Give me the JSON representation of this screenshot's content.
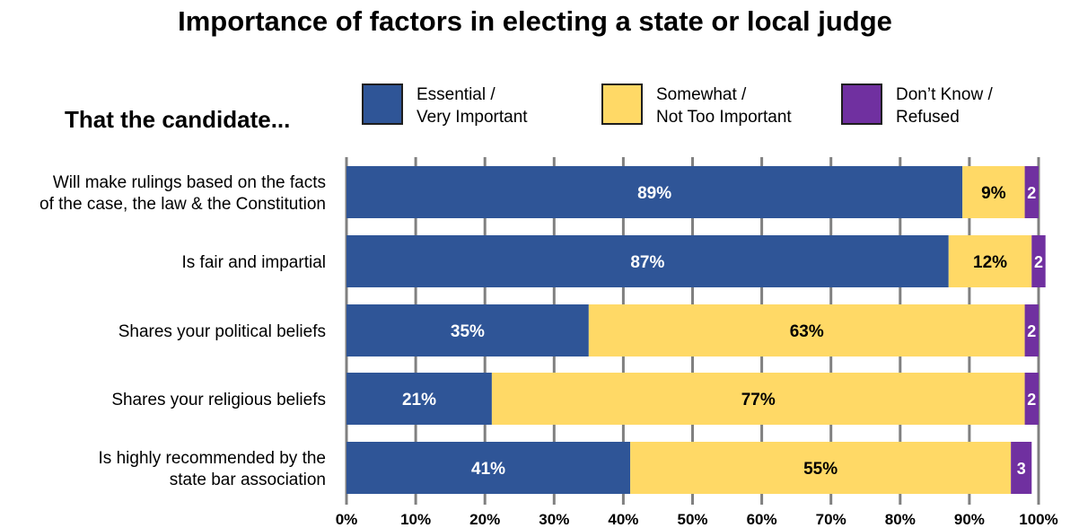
{
  "title": "Importance of factors in electing a state or local judge",
  "subtitle": "That the candidate...",
  "colors": {
    "essential": "#2f5597",
    "somewhat": "#ffd966",
    "dontknow": "#7030a0",
    "gridline": "#808080"
  },
  "legend": [
    {
      "line1": "Essential /",
      "line2": "Very Important",
      "color": "#2f5597"
    },
    {
      "line1": "Somewhat /",
      "line2": "Not Too Important",
      "color": "#ffd966"
    },
    {
      "line1": "Don’t Know /",
      "line2": "Refused",
      "color": "#7030a0"
    }
  ],
  "chart_data": {
    "type": "bar",
    "orientation": "horizontal",
    "stacked": true,
    "xlim": [
      0,
      100
    ],
    "x_ticks": [
      "0%",
      "10%",
      "20%",
      "30%",
      "40%",
      "50%",
      "60%",
      "70%",
      "80%",
      "90%",
      "100%"
    ],
    "categories": [
      [
        "Will make rulings based on the facts",
        "of the case, the law & the Constitution"
      ],
      [
        "Is fair and impartial"
      ],
      [
        "Shares your political beliefs"
      ],
      [
        "Shares your religious beliefs"
      ],
      [
        "Is highly recommended by the",
        "state bar association"
      ]
    ],
    "series": [
      {
        "name": "Essential / Very Important",
        "values": [
          89,
          87,
          35,
          21,
          41
        ],
        "labels": [
          "89%",
          "87%",
          "35%",
          "21%",
          "41%"
        ]
      },
      {
        "name": "Somewhat / Not Too Important",
        "values": [
          9,
          12,
          63,
          77,
          55
        ],
        "labels": [
          "9%",
          "12%",
          "63%",
          "77%",
          "55%"
        ]
      },
      {
        "name": "Don’t Know / Refused",
        "values": [
          2,
          2,
          2,
          2,
          3
        ],
        "labels": [
          "2",
          "2",
          "2",
          "2",
          "3"
        ]
      }
    ]
  }
}
